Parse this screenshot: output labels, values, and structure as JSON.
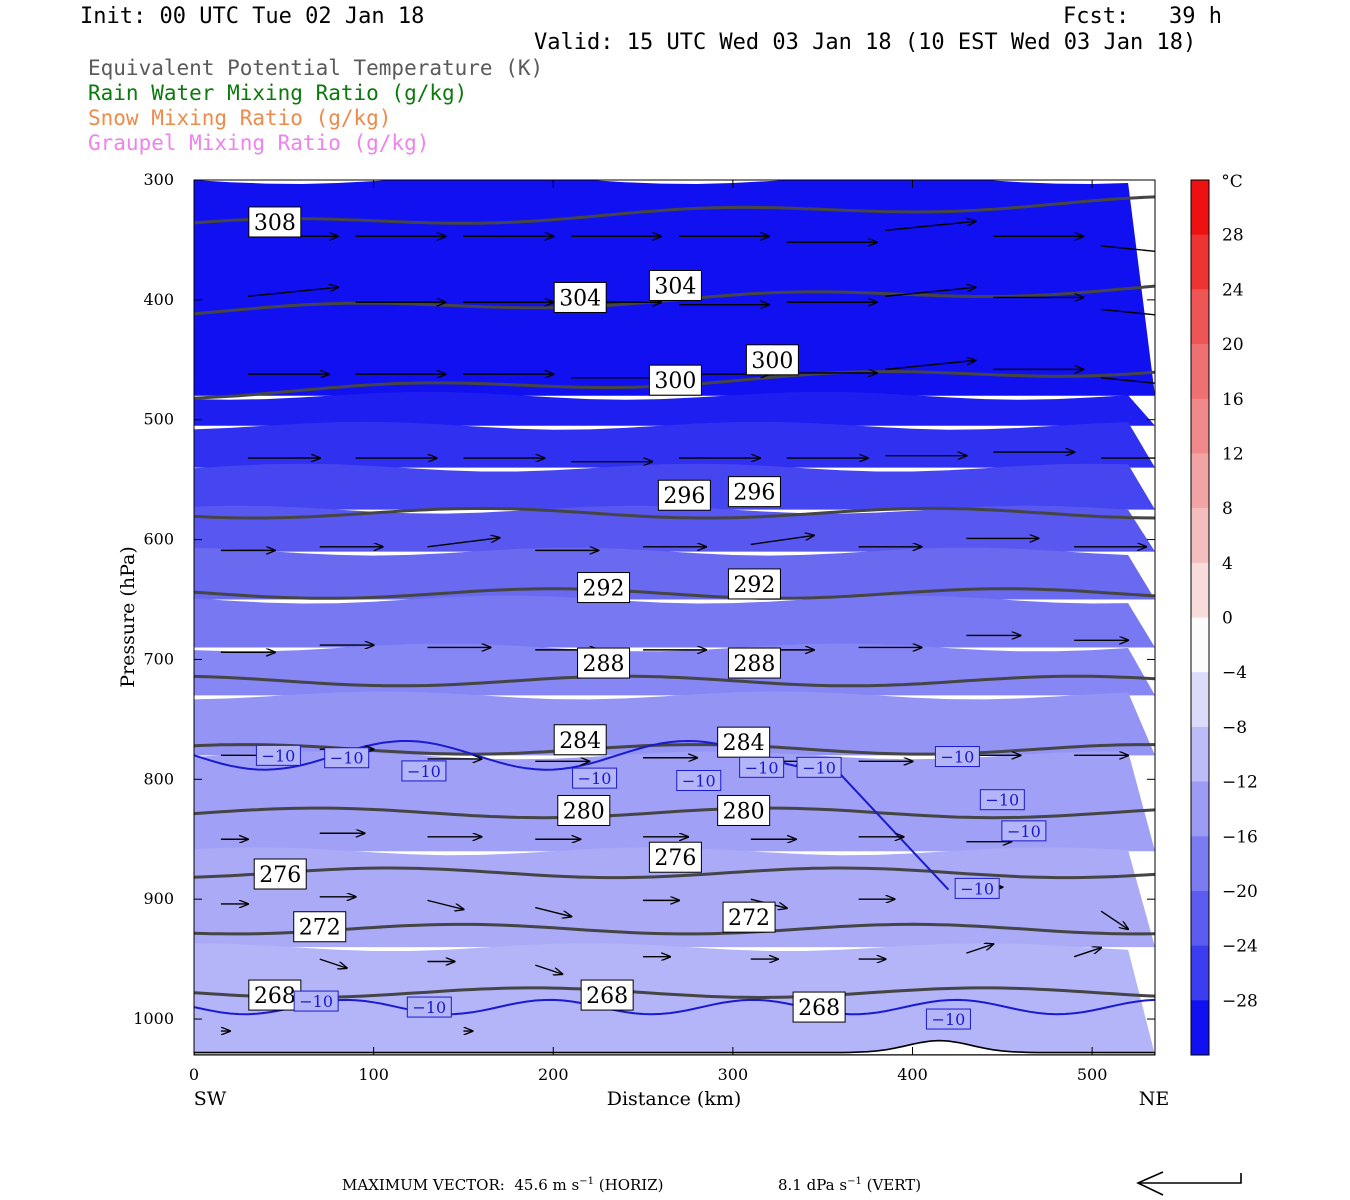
{
  "header": {
    "init": "Init: 00 UTC Tue 02 Jan 18",
    "fcst": "Fcst:   39 h",
    "valid": "Valid: 15 UTC Wed 03 Jan 18 (10 EST Wed 03 Jan 18)"
  },
  "legend": [
    {
      "text": "Equivalent Potential Temperature (K)",
      "color": "#5a5a5a"
    },
    {
      "text": "Rain Water Mixing Ratio (g/kg)",
      "color": "#0a7a0a"
    },
    {
      "text": "Snow Mixing Ratio (g/kg)",
      "color": "#f08a4a"
    },
    {
      "text": "Graupel Mixing Ratio (g/kg)",
      "color": "#ee82ee"
    }
  ],
  "chart_data": {
    "type": "cross-section",
    "xlabel": "Distance (km)",
    "ylabel": "Pressure (hPa)",
    "x_ticks": [
      0,
      100,
      200,
      300,
      400,
      500
    ],
    "y_ticks": [
      300,
      400,
      500,
      600,
      700,
      800,
      900,
      1000
    ],
    "xlim": [
      0,
      535
    ],
    "ylim": [
      300,
      1030
    ],
    "left_end_label": "SW",
    "right_end_label": "NE",
    "colorbar": {
      "unit": "°C",
      "labels": [
        "28",
        "24",
        "20",
        "16",
        "12",
        "8",
        "4",
        "0",
        "−4",
        "−8",
        "−12",
        "−16",
        "−20",
        "−24",
        "−28"
      ],
      "range": [
        -32,
        32
      ]
    },
    "theta_e_contours": [
      {
        "value": "268",
        "pressure": 978
      },
      {
        "value": "272",
        "pressure": 925
      },
      {
        "value": "276",
        "pressure": 878
      },
      {
        "value": "280",
        "pressure": 828
      },
      {
        "value": "284",
        "pressure": 775
      },
      {
        "value": "288",
        "pressure": 718
      },
      {
        "value": "292",
        "pressure": 645
      },
      {
        "value": "296",
        "pressure": 578
      },
      {
        "value": "300",
        "pressure": 478
      },
      {
        "value": "304",
        "pressure": 410
      },
      {
        "value": "308",
        "pressure": 338
      }
    ],
    "theta_e_labels": [
      {
        "text": "308",
        "x": 45,
        "p": 335
      },
      {
        "text": "304",
        "x": 215,
        "p": 398
      },
      {
        "text": "304",
        "x": 268,
        "p": 388
      },
      {
        "text": "300",
        "x": 322,
        "p": 450
      },
      {
        "text": "300",
        "x": 268,
        "p": 467
      },
      {
        "text": "296",
        "x": 273,
        "p": 563
      },
      {
        "text": "296",
        "x": 312,
        "p": 560
      },
      {
        "text": "292",
        "x": 228,
        "p": 640
      },
      {
        "text": "292",
        "x": 312,
        "p": 637
      },
      {
        "text": "288",
        "x": 228,
        "p": 703
      },
      {
        "text": "288",
        "x": 312,
        "p": 703
      },
      {
        "text": "284",
        "x": 215,
        "p": 767
      },
      {
        "text": "284",
        "x": 306,
        "p": 769
      },
      {
        "text": "280",
        "x": 217,
        "p": 826
      },
      {
        "text": "280",
        "x": 306,
        "p": 826
      },
      {
        "text": "276",
        "x": 48,
        "p": 879
      },
      {
        "text": "276",
        "x": 268,
        "p": 865
      },
      {
        "text": "272",
        "x": 70,
        "p": 923
      },
      {
        "text": "272",
        "x": 309,
        "p": 915
      },
      {
        "text": "268",
        "x": 45,
        "p": 980
      },
      {
        "text": "268",
        "x": 230,
        "p": 980
      },
      {
        "text": "268",
        "x": 348,
        "p": 990
      }
    ],
    "temp_contour_label": "−10",
    "temp_labels": [
      {
        "x": 47,
        "p": 780
      },
      {
        "x": 85,
        "p": 782
      },
      {
        "x": 128,
        "p": 793
      },
      {
        "x": 223,
        "p": 799
      },
      {
        "x": 281,
        "p": 801
      },
      {
        "x": 316,
        "p": 790
      },
      {
        "x": 348,
        "p": 790
      },
      {
        "x": 425,
        "p": 781
      },
      {
        "x": 450,
        "p": 817
      },
      {
        "x": 462,
        "p": 843
      },
      {
        "x": 436,
        "p": 891
      },
      {
        "x": 68,
        "p": 985
      },
      {
        "x": 131,
        "p": 990
      },
      {
        "x": 420,
        "p": 1000
      }
    ],
    "vectors": [
      {
        "x": 30,
        "p": 347,
        "u": 1.0,
        "w": 0.0
      },
      {
        "x": 90,
        "p": 347,
        "u": 1.0,
        "w": 0.0
      },
      {
        "x": 150,
        "p": 347,
        "u": 1.0,
        "w": 0.0
      },
      {
        "x": 210,
        "p": 347,
        "u": 1.0,
        "w": 0.0
      },
      {
        "x": 270,
        "p": 347,
        "u": 1.0,
        "w": 0.0
      },
      {
        "x": 330,
        "p": 352,
        "u": 1.0,
        "w": 0.0
      },
      {
        "x": 385,
        "p": 342,
        "u": 1.0,
        "w": 0.1
      },
      {
        "x": 445,
        "p": 347,
        "u": 1.0,
        "w": 0.0
      },
      {
        "x": 505,
        "p": 355,
        "u": 1.0,
        "w": -0.1
      },
      {
        "x": 30,
        "p": 397,
        "u": 1.0,
        "w": 0.1
      },
      {
        "x": 90,
        "p": 402,
        "u": 1.0,
        "w": 0.0
      },
      {
        "x": 150,
        "p": 402,
        "u": 1.0,
        "w": 0.0
      },
      {
        "x": 210,
        "p": 402,
        "u": 1.0,
        "w": 0.0
      },
      {
        "x": 270,
        "p": 404,
        "u": 1.0,
        "w": 0.0
      },
      {
        "x": 330,
        "p": 402,
        "u": 1.0,
        "w": 0.0
      },
      {
        "x": 385,
        "p": 397,
        "u": 1.0,
        "w": 0.1
      },
      {
        "x": 445,
        "p": 398,
        "u": 1.0,
        "w": 0.0
      },
      {
        "x": 505,
        "p": 408,
        "u": 1.0,
        "w": -0.1
      },
      {
        "x": 30,
        "p": 462,
        "u": 0.9,
        "w": 0.0
      },
      {
        "x": 90,
        "p": 462,
        "u": 1.0,
        "w": 0.0
      },
      {
        "x": 150,
        "p": 462,
        "u": 1.0,
        "w": 0.0
      },
      {
        "x": 210,
        "p": 465,
        "u": 1.0,
        "w": 0.0
      },
      {
        "x": 270,
        "p": 462,
        "u": 1.0,
        "w": 0.0
      },
      {
        "x": 330,
        "p": 461,
        "u": 1.0,
        "w": 0.0
      },
      {
        "x": 385,
        "p": 458,
        "u": 1.0,
        "w": 0.1
      },
      {
        "x": 445,
        "p": 458,
        "u": 1.0,
        "w": 0.0
      },
      {
        "x": 505,
        "p": 465,
        "u": 1.0,
        "w": -0.1
      },
      {
        "x": 30,
        "p": 532,
        "u": 0.8,
        "w": 0.0
      },
      {
        "x": 90,
        "p": 532,
        "u": 0.9,
        "w": 0.0
      },
      {
        "x": 150,
        "p": 532,
        "u": 0.9,
        "w": 0.0
      },
      {
        "x": 210,
        "p": 535,
        "u": 0.9,
        "w": 0.0
      },
      {
        "x": 270,
        "p": 532,
        "u": 0.9,
        "w": 0.0
      },
      {
        "x": 330,
        "p": 532,
        "u": 0.9,
        "w": 0.0
      },
      {
        "x": 385,
        "p": 530,
        "u": 0.9,
        "w": 0.0
      },
      {
        "x": 445,
        "p": 527,
        "u": 0.9,
        "w": 0.0
      },
      {
        "x": 505,
        "p": 532,
        "u": 0.9,
        "w": 0.0
      },
      {
        "x": 15,
        "p": 609,
        "u": 0.6,
        "w": 0.0
      },
      {
        "x": 70,
        "p": 606,
        "u": 0.7,
        "w": 0.0
      },
      {
        "x": 130,
        "p": 606,
        "u": 0.8,
        "w": 0.1
      },
      {
        "x": 190,
        "p": 609,
        "u": 0.7,
        "w": 0.0
      },
      {
        "x": 250,
        "p": 606,
        "u": 0.7,
        "w": 0.0
      },
      {
        "x": 310,
        "p": 604,
        "u": 0.7,
        "w": 0.1
      },
      {
        "x": 370,
        "p": 606,
        "u": 0.7,
        "w": 0.0
      },
      {
        "x": 430,
        "p": 599,
        "u": 0.8,
        "w": 0.0
      },
      {
        "x": 490,
        "p": 606,
        "u": 0.8,
        "w": 0.0
      },
      {
        "x": 15,
        "p": 694,
        "u": 0.6,
        "w": 0.0
      },
      {
        "x": 70,
        "p": 688,
        "u": 0.6,
        "w": 0.0
      },
      {
        "x": 130,
        "p": 690,
        "u": 0.7,
        "w": 0.0
      },
      {
        "x": 190,
        "p": 692,
        "u": 0.7,
        "w": 0.0
      },
      {
        "x": 250,
        "p": 692,
        "u": 0.7,
        "w": 0.0
      },
      {
        "x": 310,
        "p": 692,
        "u": 0.7,
        "w": 0.0
      },
      {
        "x": 370,
        "p": 690,
        "u": 0.7,
        "w": 0.0
      },
      {
        "x": 430,
        "p": 680,
        "u": 0.6,
        "w": 0.0
      },
      {
        "x": 490,
        "p": 684,
        "u": 0.6,
        "w": 0.0
      },
      {
        "x": 15,
        "p": 780,
        "u": 0.5,
        "w": 0.0
      },
      {
        "x": 70,
        "p": 775,
        "u": 0.6,
        "w": 0.0
      },
      {
        "x": 130,
        "p": 783,
        "u": 0.6,
        "w": 0.0
      },
      {
        "x": 190,
        "p": 785,
        "u": 0.6,
        "w": 0.0
      },
      {
        "x": 250,
        "p": 782,
        "u": 0.6,
        "w": 0.0
      },
      {
        "x": 310,
        "p": 785,
        "u": 0.6,
        "w": 0.0
      },
      {
        "x": 370,
        "p": 785,
        "u": 0.6,
        "w": 0.0
      },
      {
        "x": 430,
        "p": 780,
        "u": 0.6,
        "w": 0.0
      },
      {
        "x": 490,
        "p": 780,
        "u": 0.6,
        "w": 0.0
      },
      {
        "x": 15,
        "p": 850,
        "u": 0.3,
        "w": 0.0
      },
      {
        "x": 70,
        "p": 845,
        "u": 0.5,
        "w": 0.0
      },
      {
        "x": 130,
        "p": 848,
        "u": 0.6,
        "w": 0.0
      },
      {
        "x": 190,
        "p": 850,
        "u": 0.5,
        "w": 0.0
      },
      {
        "x": 250,
        "p": 848,
        "u": 0.5,
        "w": 0.0
      },
      {
        "x": 310,
        "p": 850,
        "u": 0.5,
        "w": 0.0
      },
      {
        "x": 370,
        "p": 848,
        "u": 0.5,
        "w": 0.0
      },
      {
        "x": 430,
        "p": 852,
        "u": 0.5,
        "w": 0.0
      },
      {
        "x": 15,
        "p": 904,
        "u": 0.3,
        "w": 0.0
      },
      {
        "x": 70,
        "p": 898,
        "u": 0.4,
        "w": 0.0
      },
      {
        "x": 130,
        "p": 901,
        "u": 0.4,
        "w": -0.1
      },
      {
        "x": 190,
        "p": 907,
        "u": 0.4,
        "w": -0.1
      },
      {
        "x": 250,
        "p": 901,
        "u": 0.4,
        "w": 0.0
      },
      {
        "x": 310,
        "p": 900,
        "u": 0.4,
        "w": -0.1
      },
      {
        "x": 370,
        "p": 900,
        "u": 0.4,
        "w": 0.0
      },
      {
        "x": 430,
        "p": 890,
        "u": 0.4,
        "w": 0.0
      },
      {
        "x": 505,
        "p": 910,
        "u": 0.3,
        "w": -0.2
      },
      {
        "x": 70,
        "p": 950,
        "u": 0.3,
        "w": -0.1
      },
      {
        "x": 130,
        "p": 952,
        "u": 0.3,
        "w": 0.0
      },
      {
        "x": 190,
        "p": 955,
        "u": 0.3,
        "w": -0.1
      },
      {
        "x": 250,
        "p": 948,
        "u": 0.3,
        "w": 0.0
      },
      {
        "x": 310,
        "p": 950,
        "u": 0.3,
        "w": 0.0
      },
      {
        "x": 370,
        "p": 950,
        "u": 0.3,
        "w": 0.0
      },
      {
        "x": 430,
        "p": 945,
        "u": 0.3,
        "w": 0.1
      },
      {
        "x": 490,
        "p": 948,
        "u": 0.3,
        "w": 0.1
      },
      {
        "x": 15,
        "p": 1010,
        "u": 0.1,
        "w": 0.0
      },
      {
        "x": 150,
        "p": 1010,
        "u": 0.1,
        "w": 0.0
      }
    ],
    "vector_scale": {
      "max_horiz_label": "MAXIMUM VECTOR:",
      "max_horiz_value": "45.6 m s",
      "max_horiz_unit_exp": "−1",
      "max_horiz_suffix": "(HORIZ)",
      "max_vert_value": "8.1 dPa s",
      "max_vert_unit_exp": "−1",
      "max_vert_suffix": "(VERT)"
    }
  }
}
